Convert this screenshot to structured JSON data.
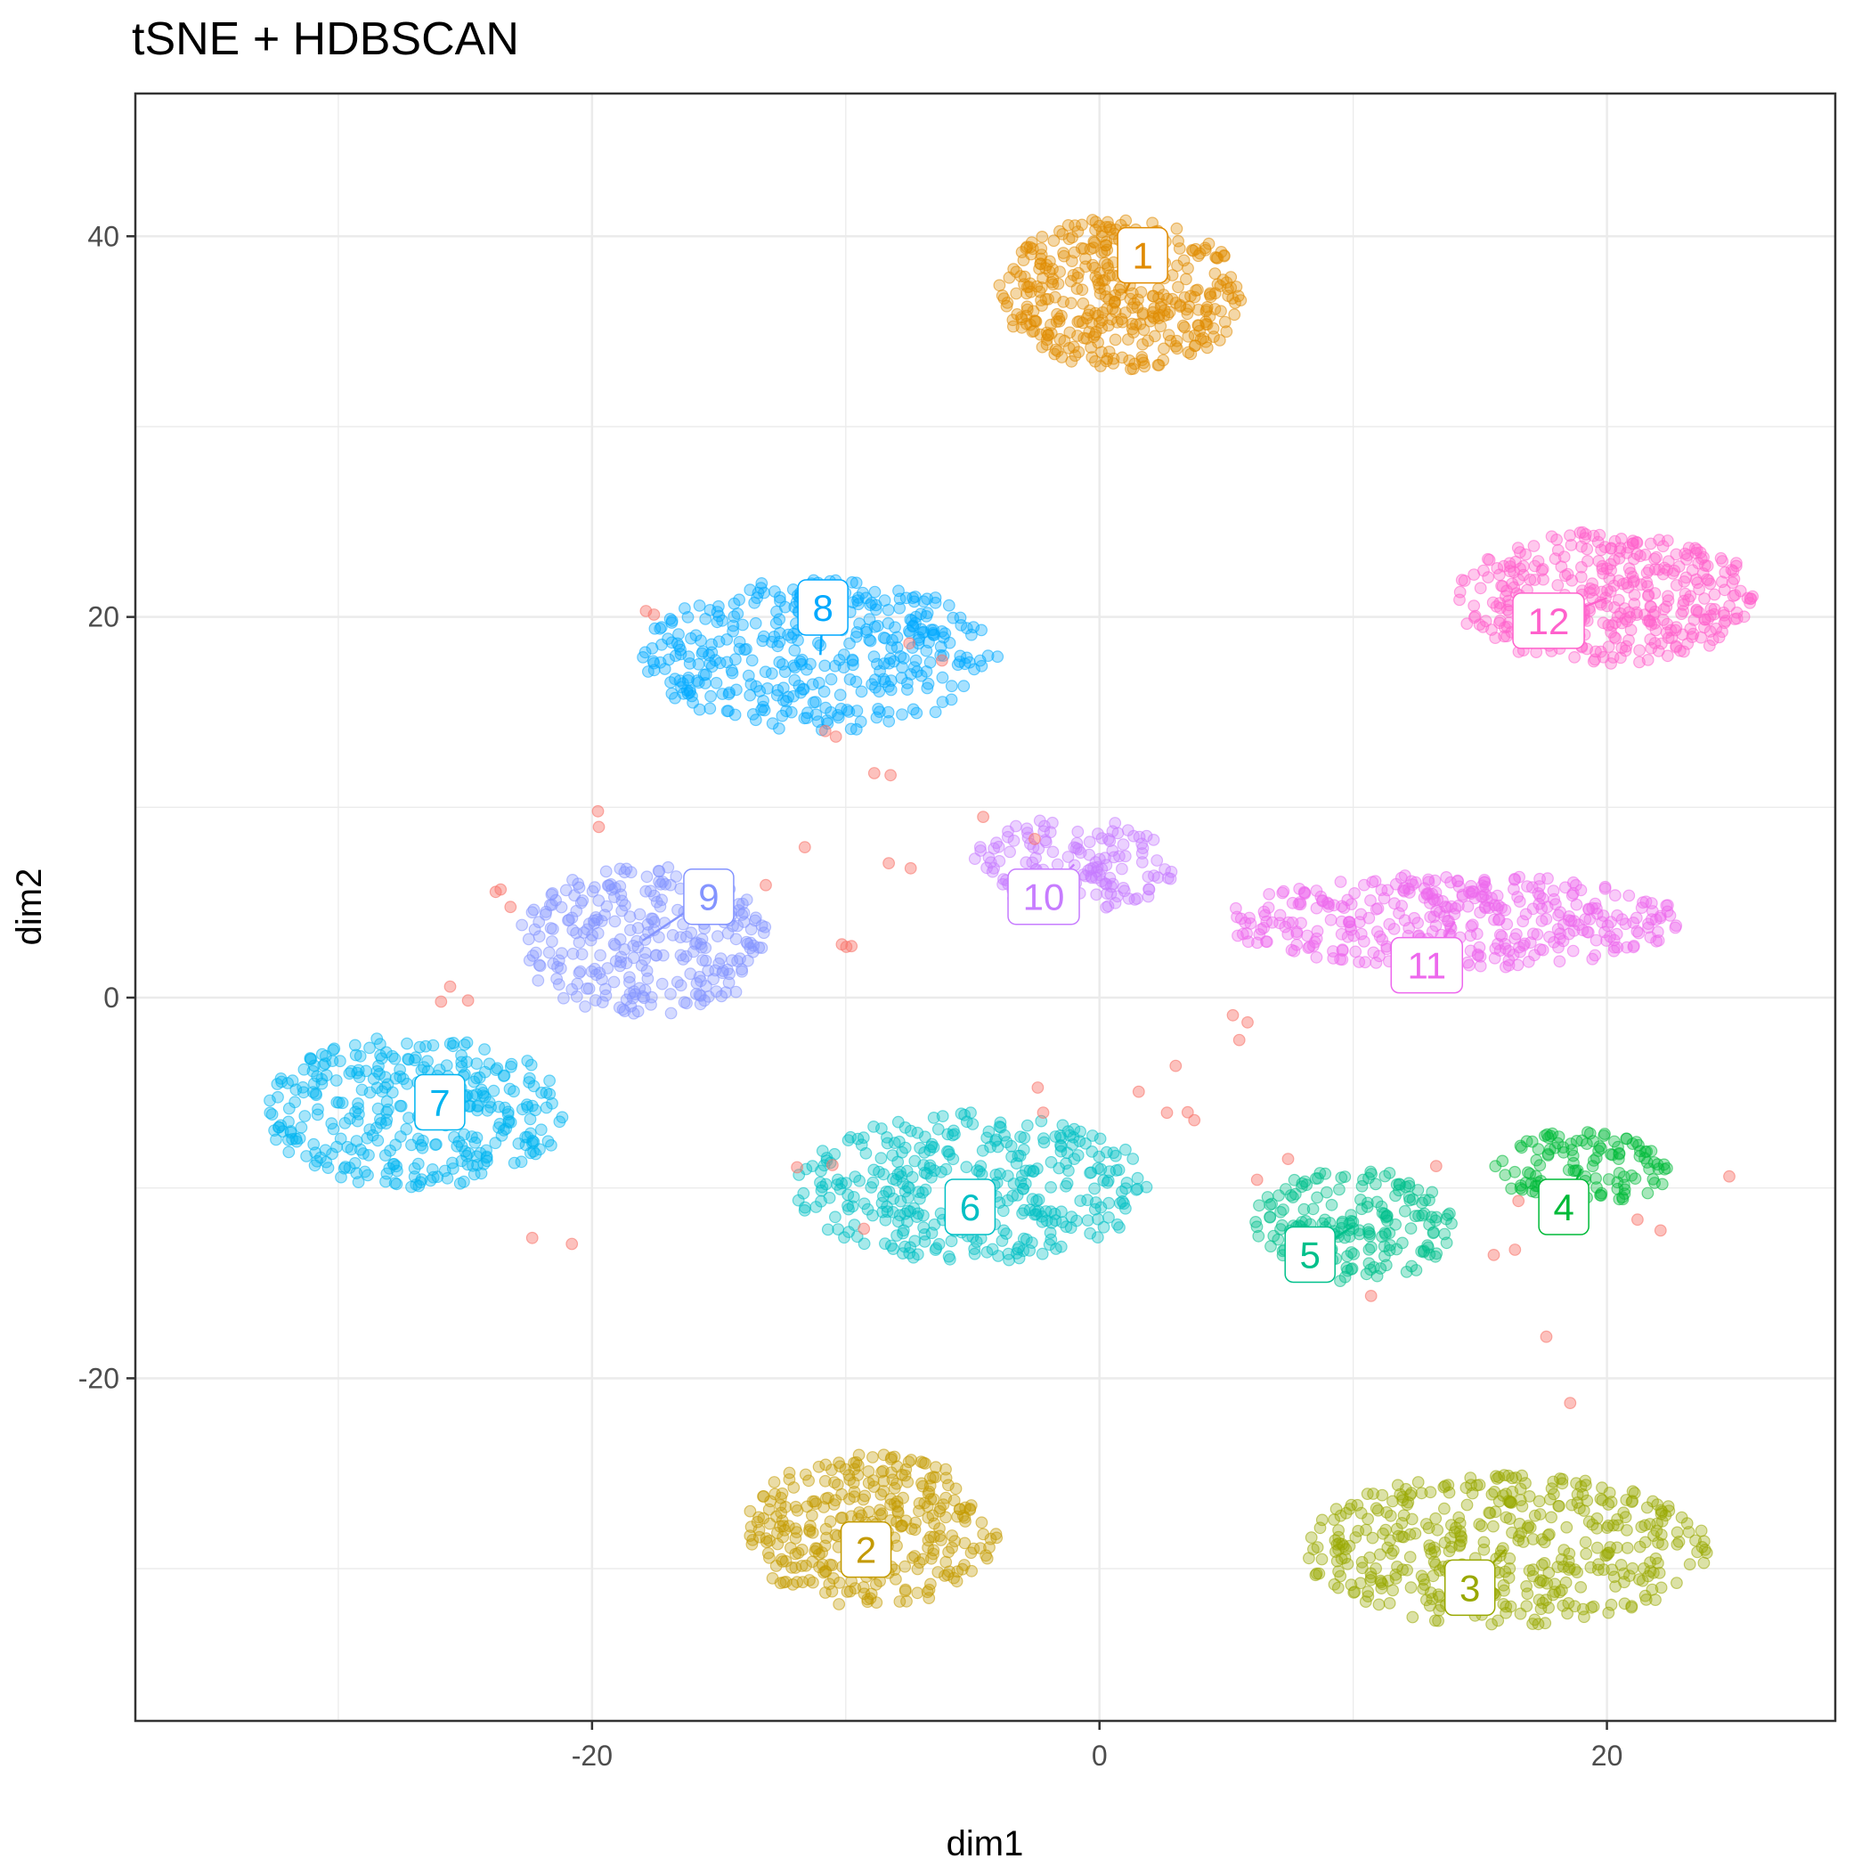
{
  "chart_data": {
    "type": "scatter",
    "title": "tSNE + HDBSCAN",
    "xlabel": "dim1",
    "ylabel": "dim2",
    "xlim": [
      -38,
      29
    ],
    "ylim": [
      -38,
      47.5
    ],
    "x_ticks": [
      -20,
      0,
      20
    ],
    "y_ticks": [
      -20,
      0,
      20,
      40
    ],
    "x_tick_labels": [
      "-20",
      "0",
      "20"
    ],
    "y_tick_labels": [
      "-20",
      "0",
      "20",
      "40"
    ],
    "grid": true,
    "legend": "none",
    "point_opacity": 0.35,
    "noise_color": "#F8766D",
    "clusters": [
      {
        "name": "1",
        "color": "#E08B00",
        "center": [
          1,
          37
        ],
        "spread": [
          5,
          4
        ],
        "n": 380,
        "label_pos": [
          1.7,
          39
        ]
      },
      {
        "name": "2",
        "color": "#C49A00",
        "center": [
          -9,
          -28
        ],
        "spread": [
          5,
          4
        ],
        "n": 330,
        "label_pos": [
          -9.2,
          -29
        ]
      },
      {
        "name": "3",
        "color": "#99A800",
        "center": [
          16,
          -29
        ],
        "spread": [
          8,
          4
        ],
        "n": 430,
        "label_pos": [
          14.6,
          -31
        ]
      },
      {
        "name": "4",
        "color": "#00BA38",
        "center": [
          19,
          -9
        ],
        "spread": [
          3.5,
          2
        ],
        "n": 120,
        "label_pos": [
          18.3,
          -11
        ]
      },
      {
        "name": "5",
        "color": "#00C08B",
        "center": [
          10,
          -12
        ],
        "spread": [
          4,
          3
        ],
        "n": 190,
        "label_pos": [
          8.3,
          -13.5
        ]
      },
      {
        "name": "6",
        "color": "#00BFC4",
        "center": [
          -5,
          -10
        ],
        "spread": [
          7,
          4
        ],
        "n": 360,
        "label_pos": [
          -5.1,
          -11
        ]
      },
      {
        "name": "7",
        "color": "#00B4F0",
        "center": [
          -27,
          -6
        ],
        "spread": [
          6,
          4
        ],
        "n": 330,
        "label_pos": [
          -26,
          -5.5
        ]
      },
      {
        "name": "8",
        "color": "#00A9FF",
        "center": [
          -11,
          18
        ],
        "spread": [
          7,
          4
        ],
        "n": 390,
        "label_pos": [
          -10.9,
          20.5
        ]
      },
      {
        "name": "9",
        "color": "#8494FF",
        "center": [
          -18,
          3
        ],
        "spread": [
          5,
          4
        ],
        "n": 280,
        "label_pos": [
          -15.4,
          5.3
        ]
      },
      {
        "name": "10",
        "color": "#C77CFF",
        "center": [
          -1,
          7
        ],
        "spread": [
          4,
          2.5
        ],
        "n": 150,
        "label_pos": [
          -2.2,
          5.3
        ]
      },
      {
        "name": "11",
        "color": "#ED68ED",
        "center": [
          14,
          4
        ],
        "spread": [
          9,
          2.5
        ],
        "n": 380,
        "label_pos": [
          12.9,
          1.7
        ]
      },
      {
        "name": "12",
        "color": "#FF61CC",
        "center": [
          20,
          21
        ],
        "spread": [
          6,
          3.5
        ],
        "n": 380,
        "label_pos": [
          17.7,
          19.8
        ]
      }
    ]
  }
}
